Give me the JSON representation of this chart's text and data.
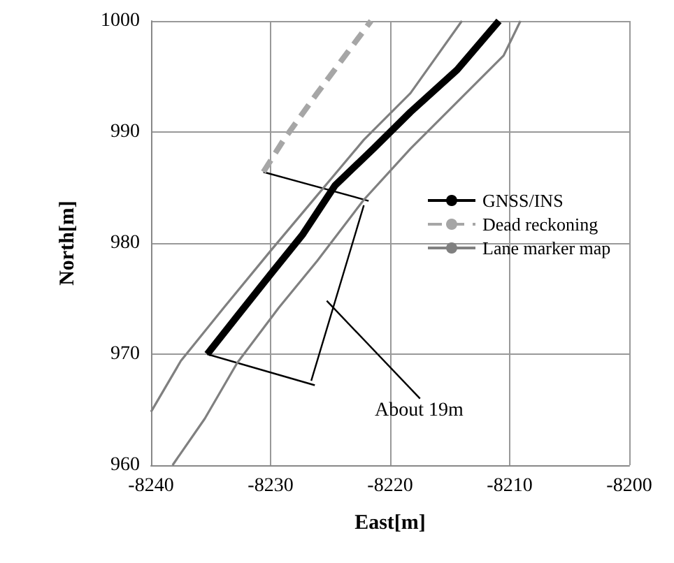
{
  "chart_data": {
    "type": "line",
    "xlabel": "East[m]",
    "ylabel": "North[m]",
    "xlim": [
      -8240,
      -8200
    ],
    "xticks": [
      -8240,
      -8230,
      -8220,
      -8210,
      -8200
    ],
    "ylim": [
      960,
      1000
    ],
    "yticks": [
      960,
      970,
      980,
      990,
      1000
    ],
    "grid": true,
    "legend": "right",
    "marker": "none",
    "line_style": "solid",
    "series": [
      {
        "name": "GNSS/INS",
        "color": "#000000",
        "x": [
          -8235.3,
          -8232.8,
          -8230.0,
          -8227.3,
          -8224.6,
          -8221.4,
          -8218.3,
          -8214.4,
          -8210.9
        ],
        "values": [
          970,
          973.4,
          977.2,
          980.8,
          985.2,
          988.5,
          991.8,
          995.6,
          1000
        ]
      },
      {
        "name": "Dead reckoning",
        "color": "#a6a6a6",
        "line_style": "dashed",
        "x": [
          -8230.6,
          -8228.9,
          -8226.1,
          -8221.6
        ],
        "values": [
          986.4,
          989.3,
          993.5,
          1000
        ]
      },
      {
        "name": "Lane marker map",
        "color": "#808080",
        "x": [
          -8240,
          -8237.5,
          -8233.9,
          -8230.0,
          -8226.1,
          -8222.2,
          -8218.3,
          -8214.0
        ],
        "values": [
          964.8,
          969.4,
          974.2,
          979.3,
          984.3,
          989.3,
          993.5,
          1000
        ]
      },
      {
        "color": "#808080",
        "x": [
          -8238.2,
          -8235.5,
          -8232.8,
          -8229.3,
          -8226.1,
          -8222.2,
          -8218.3,
          -8214.4,
          -8210.5,
          -8209.1
        ],
        "values": [
          960,
          964.2,
          969.2,
          974.2,
          978.4,
          983.9,
          988.5,
          992.7,
          996.9,
          1000
        ]
      },
      {
        "color": "#000000",
        "x": [
          -8230.6,
          -8221.8
        ],
        "values": [
          986.4,
          983.8
        ]
      },
      {
        "color": "#000000",
        "x": [
          -8235.3,
          -8226.3
        ],
        "values": [
          970,
          967.2
        ]
      },
      {
        "color": "#000000",
        "x": [
          -8222.2,
          -8226.6
        ],
        "values": [
          983.4,
          967.6
        ]
      },
      {
        "color": "#000000",
        "x": [
          -8225.3,
          -8217.5
        ],
        "values": [
          974.8,
          966.0
        ]
      }
    ],
    "annotations": [
      "About 19m"
    ]
  }
}
